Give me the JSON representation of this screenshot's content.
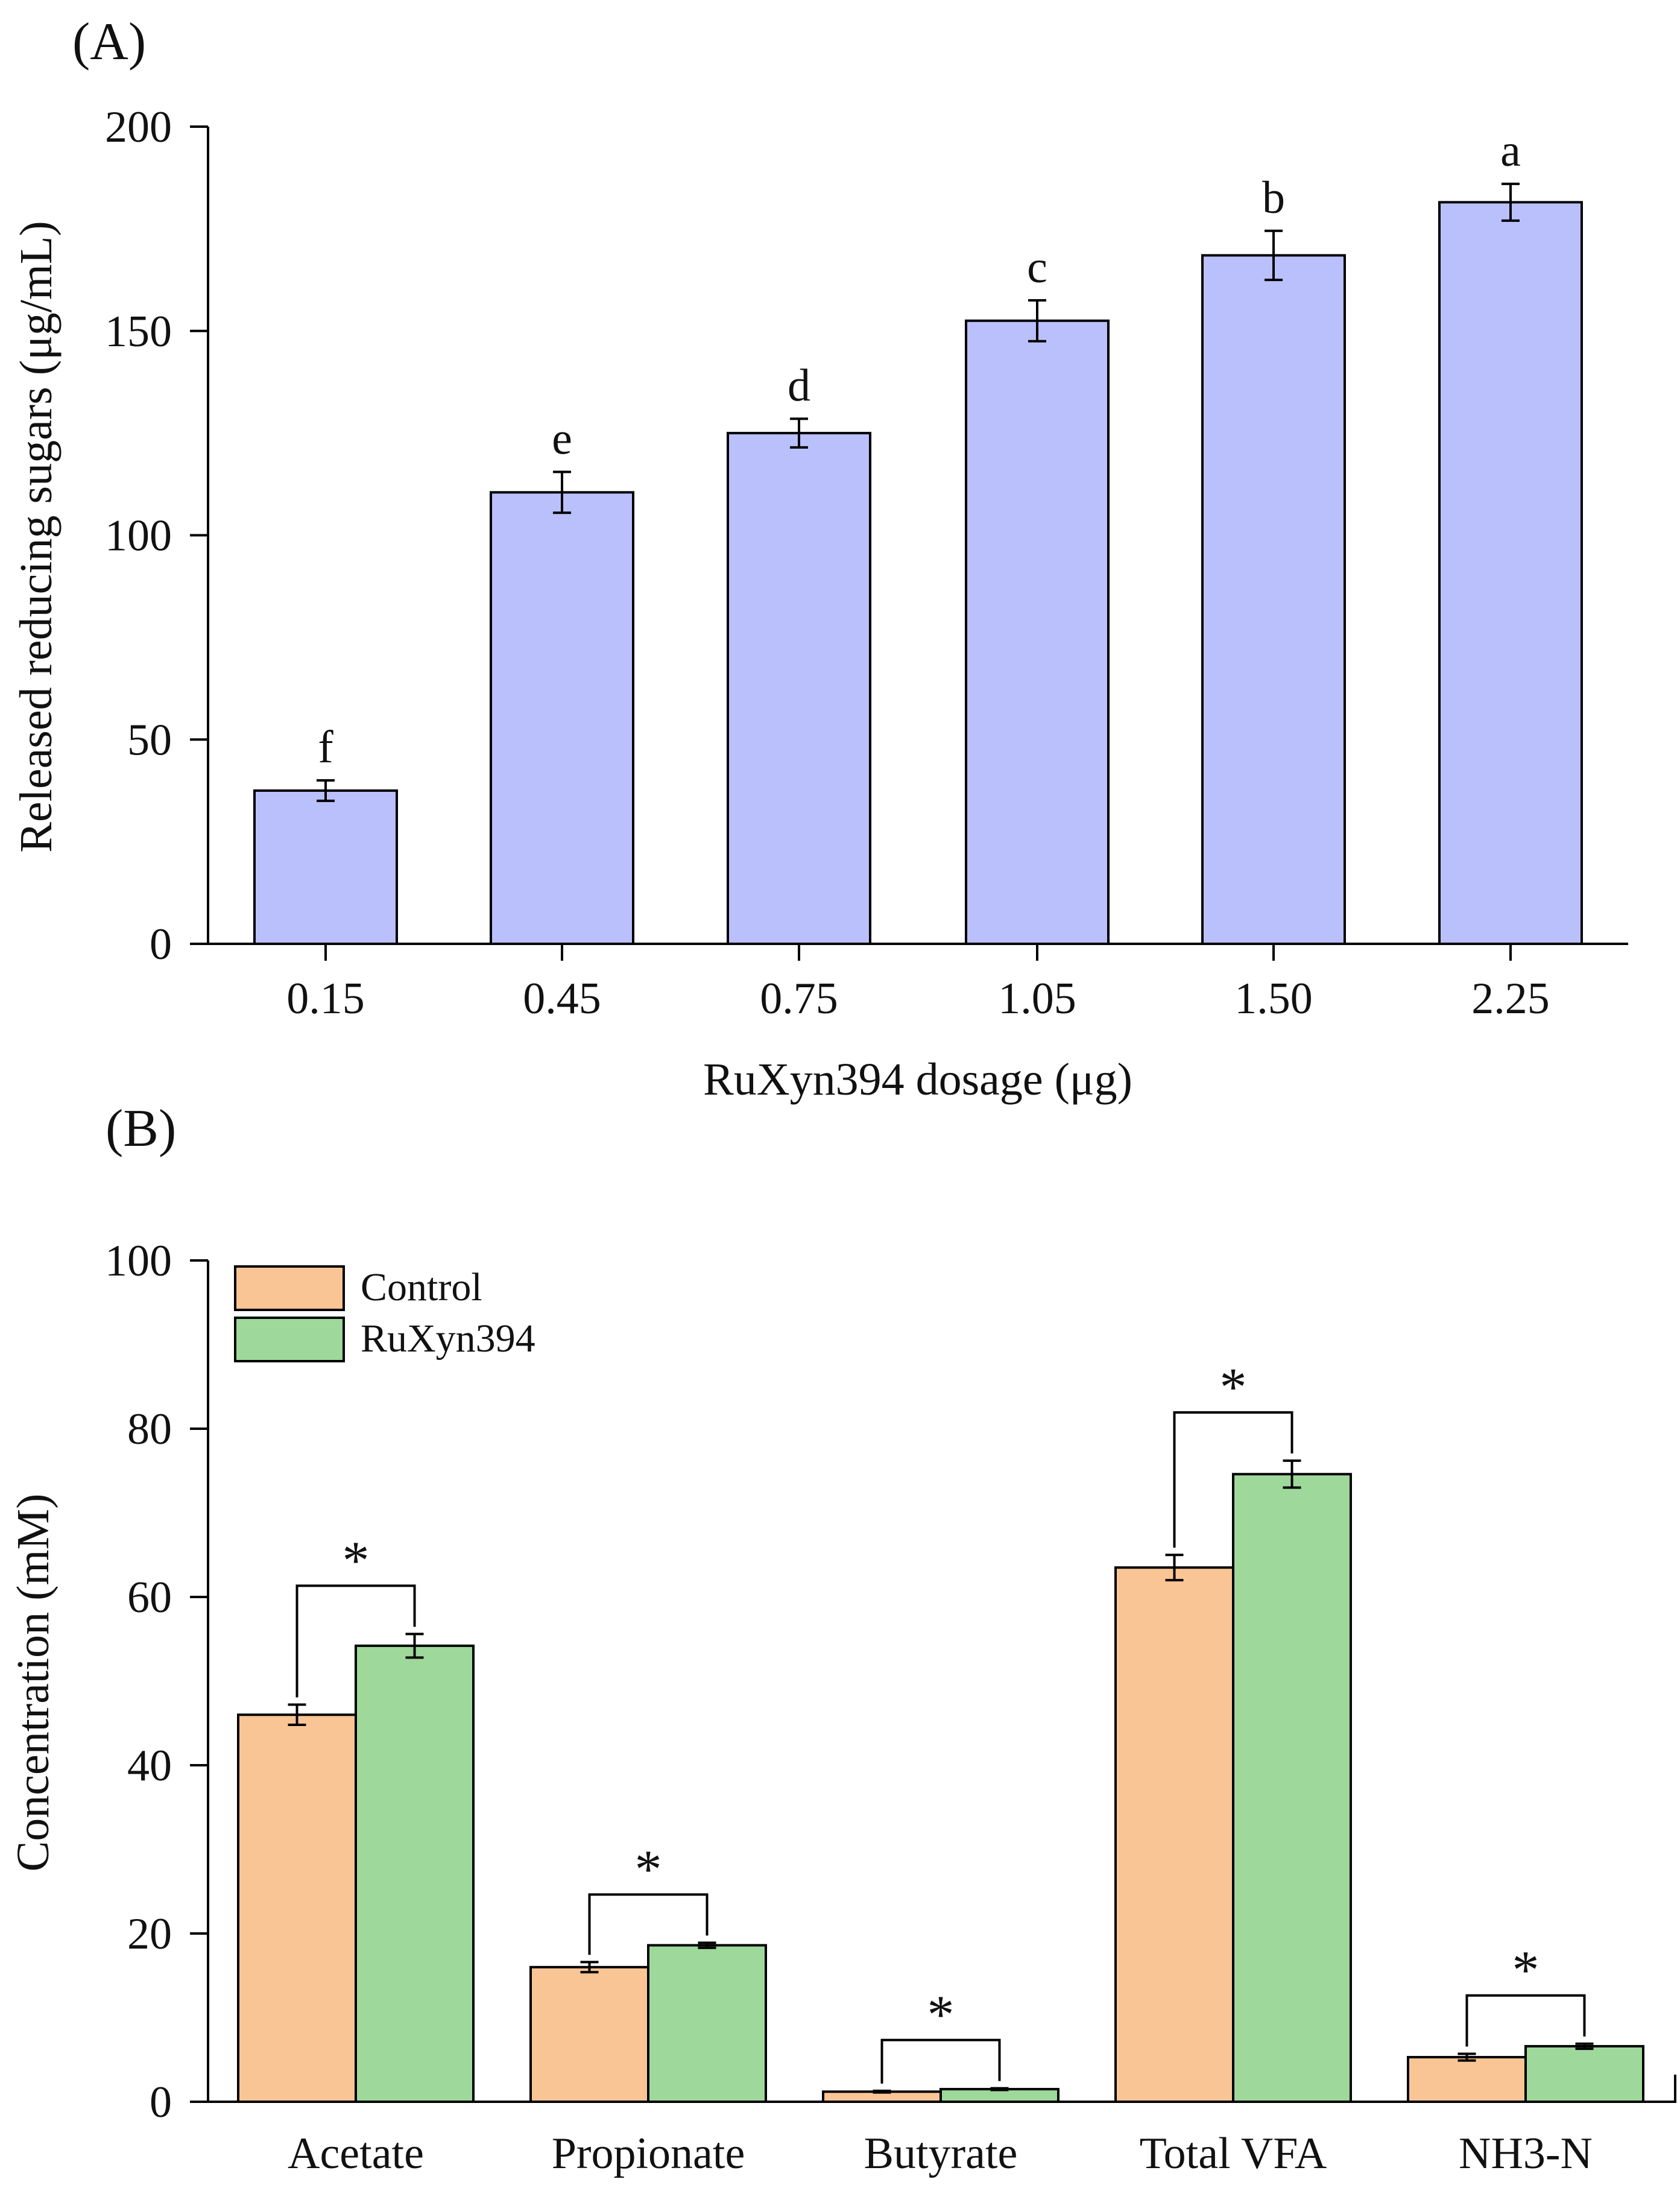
{
  "chart_data": [
    {
      "panel": "(A)",
      "type": "bar",
      "xlabel": "RuXyn394 dosage (μg)",
      "ylabel": "Released reducing sugars (μg/mL)",
      "ylim": [
        0,
        200
      ],
      "yticks": [
        0,
        50,
        100,
        150,
        200
      ],
      "categories": [
        "0.15",
        "0.45",
        "0.75",
        "1.05",
        "1.50",
        "2.25"
      ],
      "values": [
        37.5,
        110.5,
        125,
        152.5,
        168.5,
        181.5
      ],
      "errors": [
        2.5,
        5,
        3.5,
        5,
        6,
        4.5
      ],
      "letters": [
        "f",
        "e",
        "d",
        "c",
        "b",
        "a"
      ],
      "bar_color": "#bac0fb",
      "grid": false
    },
    {
      "panel": "(B)",
      "type": "bar",
      "ylabel": "Concentration (mM)",
      "ylim": [
        0,
        100
      ],
      "yticks": [
        0,
        20,
        40,
        60,
        80,
        100
      ],
      "categories": [
        "Acetate",
        "Propionate",
        "Butyrate",
        "Total VFA",
        "NH3-N"
      ],
      "series": [
        {
          "name": "Control",
          "color": "#fac595",
          "values": [
            46,
            16,
            1.2,
            63.5,
            5.3
          ],
          "errors": [
            1.2,
            0.6,
            0.1,
            1.5,
            0.4
          ]
        },
        {
          "name": "RuXyn394",
          "color": "#9ed89a",
          "values": [
            54.2,
            18.6,
            1.5,
            74.6,
            6.6
          ],
          "errors": [
            1.4,
            0.3,
            0.1,
            1.6,
            0.3
          ]
        }
      ],
      "significance": [
        "*",
        "*",
        "*",
        "*",
        "*"
      ],
      "legend": "top-left",
      "grid": false
    }
  ]
}
